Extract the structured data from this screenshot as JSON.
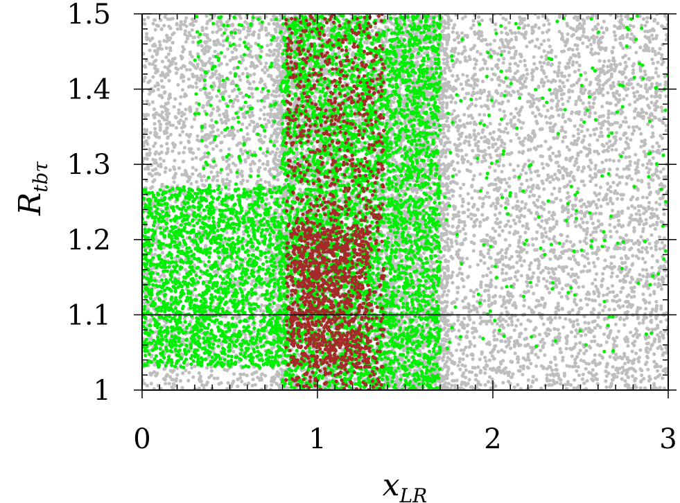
{
  "chart_data": {
    "type": "scatter",
    "title": "",
    "xlabel": {
      "main": "x",
      "sub": "LR"
    },
    "ylabel": {
      "main": "R",
      "sub": "tbτ"
    },
    "xlim": [
      0,
      3
    ],
    "ylim": [
      1.0,
      1.5
    ],
    "xticks": [
      "0",
      "1",
      "2",
      "3"
    ],
    "yticks": [
      "1",
      "1.1",
      "1.2",
      "1.3",
      "1.4",
      "1.5"
    ],
    "grid": false,
    "legend": "none",
    "reference_lines": [
      {
        "axis": "y",
        "value": 1.1
      },
      {
        "axis": "y",
        "value": 1.5
      }
    ],
    "series": [
      {
        "color": "#bebebe",
        "regions": [
          {
            "x": [
              0.0,
              3.0
            ],
            "y": [
              1.0,
              1.5
            ],
            "density": 0.55
          },
          {
            "x": [
              0.75,
              1.75
            ],
            "y": [
              1.0,
              1.5
            ],
            "density": 0.85
          }
        ]
      },
      {
        "color": "#00ee00",
        "regions": [
          {
            "x": [
              0.0,
              0.8
            ],
            "y": [
              1.03,
              1.27
            ],
            "density": 1.0
          },
          {
            "x": [
              0.8,
              1.7
            ],
            "y": [
              1.0,
              1.5
            ],
            "density": 0.95
          },
          {
            "x": [
              1.7,
              3.0
            ],
            "y": [
              1.05,
              1.5
            ],
            "density": 0.03
          },
          {
            "x": [
              0.3,
              0.8
            ],
            "y": [
              1.27,
              1.5
            ],
            "density": 0.12
          }
        ]
      },
      {
        "color": "#a52a2a",
        "regions": [
          {
            "x": [
              0.82,
              1.38
            ],
            "y": [
              1.0,
              1.5
            ],
            "density": 0.35
          },
          {
            "x": [
              0.85,
              1.3
            ],
            "y": [
              1.03,
              1.22
            ],
            "density": 0.9
          }
        ]
      }
    ]
  }
}
